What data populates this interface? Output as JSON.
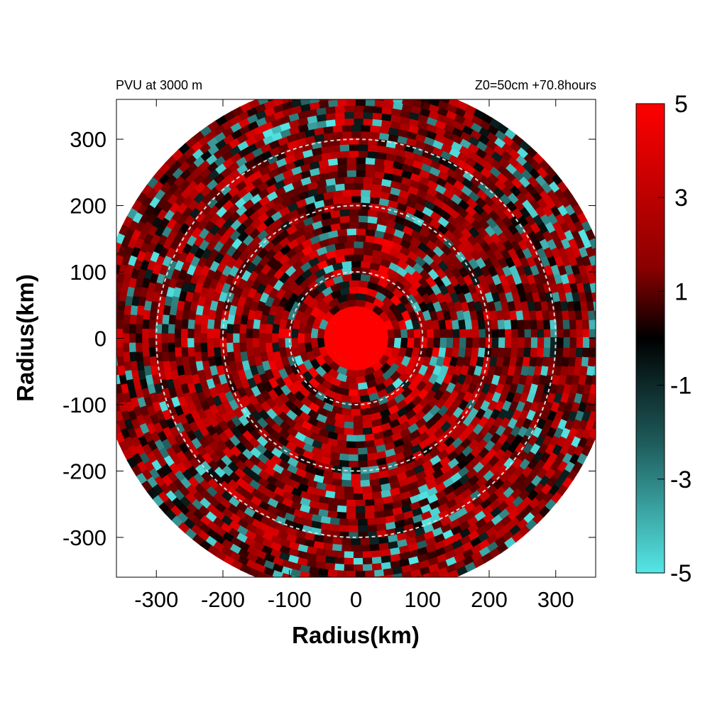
{
  "chart_data": {
    "type": "heatmap",
    "title_left": "PVU at  3000 m",
    "title_right": "Z0=50cm  +70.8hours",
    "xlabel": "Radius(km)",
    "ylabel": "Radius(km)",
    "xlim": [
      -360,
      360
    ],
    "ylim": [
      -360,
      360
    ],
    "xticks": [
      -300,
      -200,
      -100,
      0,
      100,
      200,
      300
    ],
    "yticks": [
      300,
      200,
      100,
      0,
      -100,
      -200,
      -300
    ],
    "xtick_labels": [
      "-300",
      "-200",
      "-100",
      "0",
      "100",
      "200",
      "300"
    ],
    "ytick_labels": [
      "300",
      "200",
      "100",
      "0",
      "-100",
      "-200",
      "-300"
    ],
    "domain_radius": 390,
    "reference_circles_km": [
      100,
      200,
      300
    ],
    "colorbar": {
      "range": [
        -5,
        5
      ],
      "ticks": [
        5,
        3,
        1,
        -1,
        -3,
        -5
      ],
      "tick_labels": [
        "5",
        "3",
        "1",
        "-1",
        "-3",
        "-5"
      ],
      "colors": {
        "max": "#ff0000",
        "mid": "#000000",
        "min": "#55e6e6"
      }
    },
    "field_description_values": {
      "core_value": 5,
      "core_radius_km": 45
    }
  }
}
